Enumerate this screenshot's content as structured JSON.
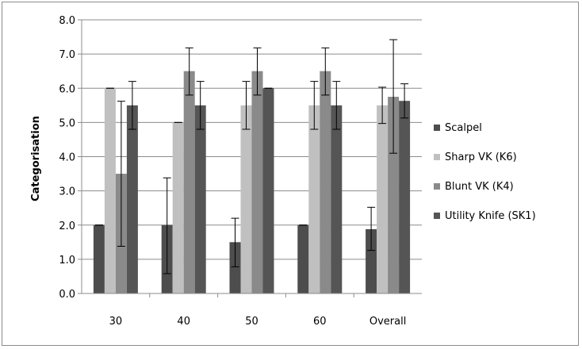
{
  "chart_data": {
    "type": "bar",
    "title": "",
    "xlabel": "",
    "ylabel": "Categorisation",
    "ylim": [
      0,
      8
    ],
    "yticks": [
      "0.0",
      "1.0",
      "2.0",
      "3.0",
      "4.0",
      "5.0",
      "6.0",
      "7.0",
      "8.0"
    ],
    "grid": true,
    "legend_position": "right",
    "categories": [
      "30",
      "40",
      "50",
      "60",
      "Overall"
    ],
    "series": [
      {
        "name": "Scalpel",
        "color": "#4d4d4d",
        "values": [
          2.0,
          2.0,
          1.5,
          2.0,
          1.88
        ],
        "err_low": [
          2.0,
          0.58,
          0.78,
          2.0,
          1.26
        ],
        "err_high": [
          2.0,
          3.38,
          2.2,
          2.0,
          2.52
        ]
      },
      {
        "name": "Sharp VK (K6)",
        "color": "#c0c0c0",
        "values": [
          6.0,
          5.0,
          5.5,
          5.5,
          5.5
        ],
        "err_low": [
          6.0,
          5.0,
          4.8,
          4.8,
          4.97
        ],
        "err_high": [
          6.0,
          5.0,
          6.2,
          6.2,
          6.03
        ]
      },
      {
        "name": "Blunt VK (K4)",
        "color": "#8a8a8a",
        "values": [
          3.5,
          6.5,
          6.5,
          6.5,
          5.75
        ],
        "err_low": [
          1.38,
          5.8,
          5.8,
          5.8,
          4.1
        ],
        "err_high": [
          5.62,
          7.18,
          7.18,
          7.18,
          7.42
        ]
      },
      {
        "name": "Utility Knife (SK1)",
        "color": "#555555",
        "values": [
          5.5,
          5.5,
          6.0,
          5.5,
          5.63
        ],
        "err_low": [
          4.8,
          4.8,
          6.0,
          4.8,
          5.13
        ],
        "err_high": [
          6.2,
          6.2,
          6.0,
          6.2,
          6.13
        ]
      }
    ]
  }
}
